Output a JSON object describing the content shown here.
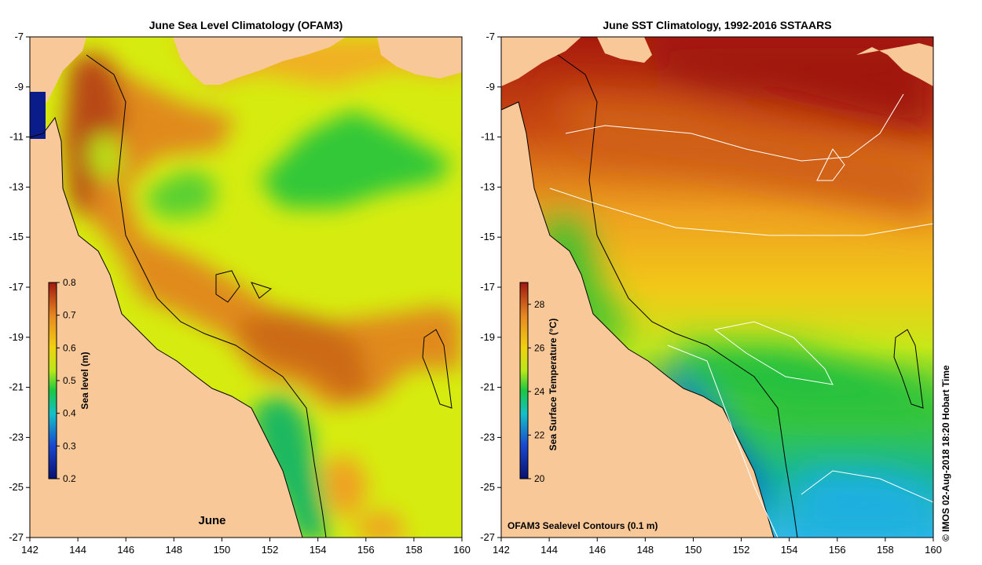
{
  "colors": {
    "land": "#f9c898",
    "coast": "#000000",
    "contour": "#ffffff",
    "ramp": [
      "#0a1a80",
      "#1f5ad8",
      "#18b8c8",
      "#1fc848",
      "#8fe020",
      "#d8f010",
      "#f2d810",
      "#f0a020",
      "#d86818",
      "#a82010"
    ]
  },
  "left_panel": {
    "title": "June Sea Level Climatology (OFAM3)",
    "month_label": "June",
    "colorbar": {
      "label": "Sea level (m)",
      "range": [
        0.2,
        0.8
      ],
      "ticks": [
        "0.8",
        "0.7",
        "0.6",
        "0.5",
        "0.4",
        "0.3",
        "0.2"
      ]
    }
  },
  "right_panel": {
    "title": "June SST Climatology, 1992-2016 SSTAARS",
    "contours_label": "OFAM3 Sealevel Contours (0.1 m)",
    "colorbar": {
      "label": "Sea Surface Temperature (°C)",
      "range": [
        20,
        29
      ],
      "ticks": [
        "28",
        "26",
        "24",
        "22",
        "20"
      ]
    }
  },
  "axes": {
    "lon_range": [
      142,
      160
    ],
    "lat_range": [
      -27,
      -7
    ],
    "x_ticks": [
      "142",
      "144",
      "146",
      "148",
      "150",
      "152",
      "154",
      "156",
      "158",
      "160"
    ],
    "y_ticks": [
      "-7",
      "-9",
      "-11",
      "-13",
      "-15",
      "-17",
      "-19",
      "-21",
      "-23",
      "-25",
      "-27"
    ]
  },
  "credit": "©  IMOS 02-Aug-2018 18:20 Hobart Time"
}
